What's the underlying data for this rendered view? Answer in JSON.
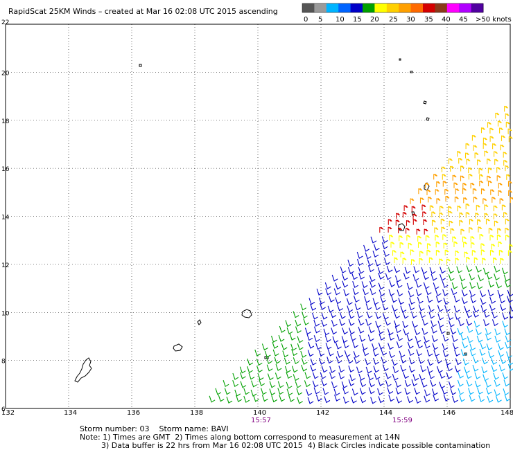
{
  "title": "RapidScat 25KM Winds – created at Mar 16 02:08 UTC 2015 ascending",
  "legend": {
    "colors": [
      "#555555",
      "#9a9a9a",
      "#00b4ff",
      "#0064ff",
      "#0000c8",
      "#00a000",
      "#ffff00",
      "#ffd000",
      "#ffa000",
      "#ff6a00",
      "#d40000",
      "#8b3a1a",
      "#ff00ff",
      "#b000ff",
      "#5000a0"
    ],
    "labels": [
      "0",
      "5",
      "10",
      "15",
      "20",
      "25",
      "30",
      "35",
      "40",
      "45",
      ">50 knots"
    ]
  },
  "map": {
    "lat_labels": [
      "22",
      "20",
      "18",
      "16",
      "14",
      "12",
      "10",
      "8",
      "6"
    ],
    "lon_labels": [
      "132",
      "134",
      "136",
      "138",
      "140",
      "142",
      "144",
      "146",
      "148"
    ],
    "time_labels": [
      "15:57",
      "15:59"
    ],
    "time_color": "#800080"
  },
  "footer": {
    "storm": "Storm number: 03    Storm name: BAVI",
    "note1": "Note: 1) Times are GMT  2) Times along bottom correspond to measurement at 14N",
    "note2": "3) Data buffer is 22 hrs from Mar 16 02:08 UTC 2015  4) Black Circles indicate possible contamination"
  }
}
